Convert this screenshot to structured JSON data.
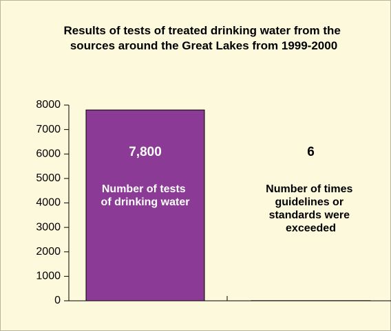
{
  "chart_data": {
    "type": "bar",
    "title": "Results of tests of treated drinking water from the sources around the Great Lakes from 1999-2000",
    "categories": [
      "Number of tests of drinking water",
      "Number of times guidelines or standards were exceeded"
    ],
    "values": [
      7800,
      6
    ],
    "value_labels": [
      "7,800",
      "6"
    ],
    "colors": [
      "#8b3a96",
      "#f7941d"
    ],
    "ylim": [
      0,
      8000
    ],
    "yticks": [
      0,
      1000,
      2000,
      3000,
      4000,
      5000,
      6000,
      7000,
      8000
    ],
    "grid": false
  }
}
